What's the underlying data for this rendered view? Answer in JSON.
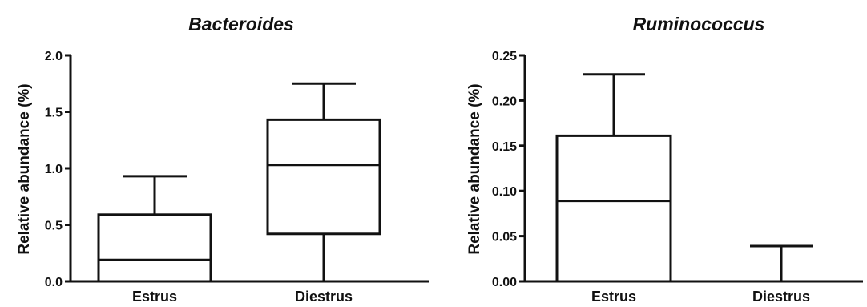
{
  "chart_data": [
    {
      "type": "box",
      "title": "Bacteroides",
      "xlabel": "",
      "ylabel": "Relative abundance (%)",
      "ylim": [
        0,
        2.0
      ],
      "yticks": [
        "0.0",
        "0.5",
        "1.0",
        "1.5",
        "2.0"
      ],
      "categories": [
        "Estrus",
        "Diestrus"
      ],
      "boxes": [
        {
          "min": 0.0,
          "q1": 0.0,
          "median": 0.19,
          "q3": 0.59,
          "max": 0.93
        },
        {
          "min": 0.0,
          "q1": 0.42,
          "median": 1.03,
          "q3": 1.43,
          "max": 1.75
        }
      ],
      "grid": false,
      "color": "#111111"
    },
    {
      "type": "box",
      "title": "Ruminococcus",
      "xlabel": "",
      "ylabel": "Relative abundance (%)",
      "ylim": [
        0,
        0.25
      ],
      "yticks": [
        "0.00",
        "0.05",
        "0.10",
        "0.15",
        "0.20",
        "0.25"
      ],
      "categories": [
        "Estrus",
        "Diestrus"
      ],
      "boxes": [
        {
          "min": 0.0,
          "q1": 0.0,
          "median": 0.089,
          "q3": 0.161,
          "max": 0.229
        },
        {
          "min": 0.0,
          "q1": 0.0,
          "median": 0.0,
          "q3": 0.0,
          "max": 0.039
        }
      ],
      "grid": false,
      "color": "#111111"
    }
  ]
}
